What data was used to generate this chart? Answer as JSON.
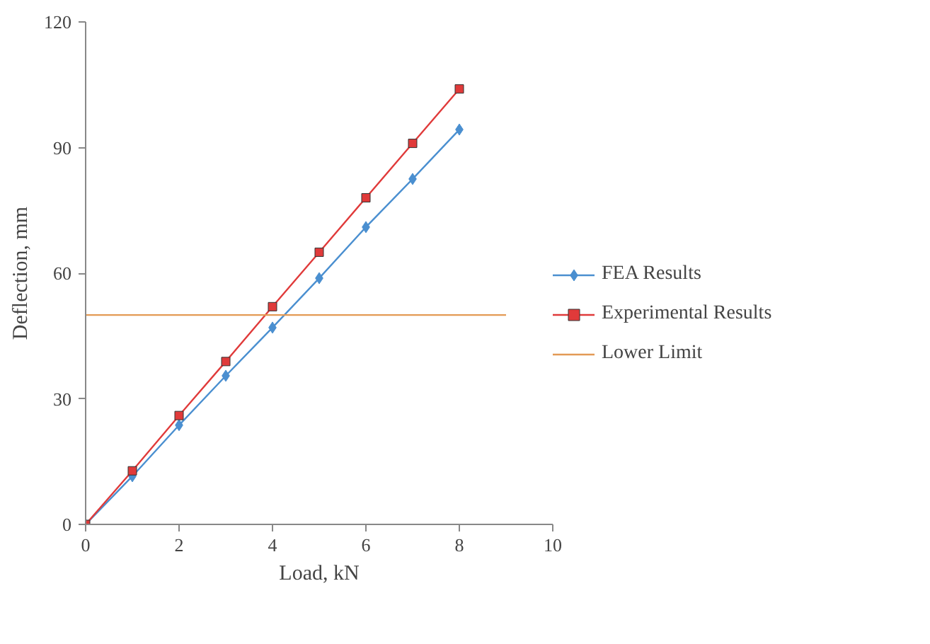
{
  "chart_data": {
    "type": "line",
    "xlabel": "Load, kN",
    "ylabel": "Deflection, mm",
    "xlim": [
      0,
      10
    ],
    "ylim": [
      0,
      120
    ],
    "xticks": [
      0,
      2,
      4,
      6,
      8,
      10
    ],
    "yticks": [
      0,
      30,
      60,
      90,
      120
    ],
    "grid": false,
    "legend": "right",
    "series": [
      {
        "name": "FEA Results",
        "color": "#4a8fd0",
        "marker": "diamond",
        "x": [
          0,
          1,
          2,
          3,
          4,
          5,
          6,
          7,
          8
        ],
        "values": [
          0,
          11.5,
          23.7,
          35.5,
          47,
          58.8,
          71,
          82.5,
          94.3
        ]
      },
      {
        "name": "Experimental Results",
        "color": "#e03a3a",
        "marker": "square",
        "x": [
          0,
          1,
          2,
          3,
          4,
          5,
          6,
          7,
          8
        ],
        "values": [
          0,
          12.8,
          26,
          38.9,
          52,
          65,
          78,
          91,
          104
        ]
      },
      {
        "name": "Lower Limit",
        "color": "#e39a55",
        "marker": "none",
        "x": [
          0,
          9
        ],
        "values": [
          50,
          50
        ]
      }
    ]
  }
}
